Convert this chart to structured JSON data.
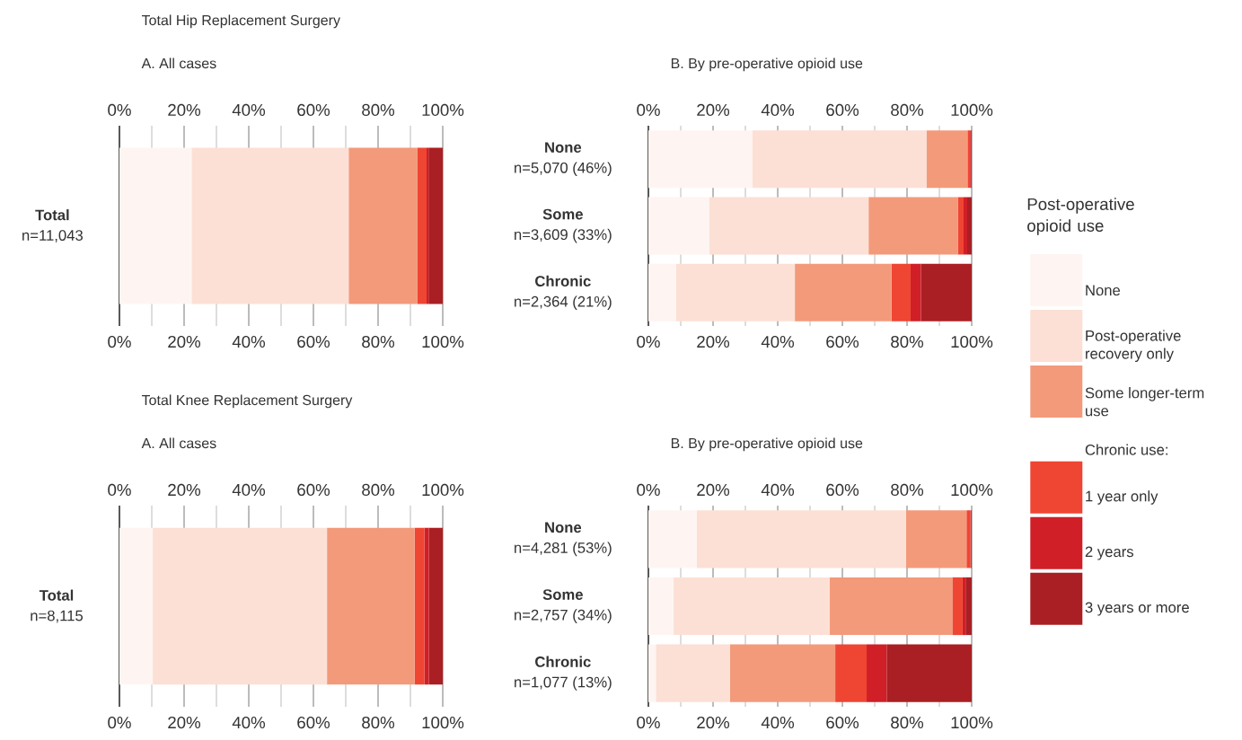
{
  "chart_data": [
    {
      "type": "bar",
      "orientation": "horizontal",
      "stacked": true,
      "title": "Total Hip Replacement Surgery",
      "subtitle": "A. All cases",
      "categories": [
        "**Total**\nn=11,043"
      ],
      "xlim": [
        0,
        100
      ],
      "xticks": [
        {
          "value": 0,
          "label": "0%"
        },
        {
          "value": 20,
          "label": "20%"
        },
        {
          "value": 40,
          "label": "40%"
        },
        {
          "value": 60,
          "label": "60%"
        },
        {
          "value": 80,
          "label": "80%"
        },
        {
          "value": 100,
          "label": "100%"
        }
      ],
      "x2lim": [
        0,
        100
      ],
      "x2ticks": [
        {
          "value": 0,
          "label": "0%"
        },
        {
          "value": 20,
          "label": "20%"
        },
        {
          "value": 40,
          "label": "40%"
        },
        {
          "value": 60,
          "label": "60%"
        },
        {
          "value": 80,
          "label": "80%"
        },
        {
          "value": 100,
          "label": "100%"
        }
      ],
      "grid": "x",
      "series": [
        {
          "color": "#fef5f2",
          "values": [
            22.3
          ]
        },
        {
          "color": "#fce0d5",
          "values": [
            48.6
          ]
        },
        {
          "color": "#f39a7b",
          "values": [
            21.3
          ]
        },
        {
          "color": "#ef4533",
          "values": [
            2.8
          ]
        },
        {
          "color": "#d01f27",
          "values": [
            0.6
          ]
        },
        {
          "color": "#aa1f23",
          "values": [
            4.4
          ]
        }
      ]
    },
    {
      "type": "bar",
      "orientation": "horizontal",
      "stacked": true,
      "subtitle": "B. By pre-operative opioid use",
      "categories": [
        "**None**\nn=5,070 (46%)",
        "**Some**\nn=3,609 (33%)",
        "**Chronic**\nn=2,364 (21%)"
      ],
      "xlim": [
        0,
        100
      ],
      "xticks": [
        {
          "value": 0,
          "label": "0%"
        },
        {
          "value": 20,
          "label": "20%"
        },
        {
          "value": 40,
          "label": "40%"
        },
        {
          "value": 60,
          "label": "60%"
        },
        {
          "value": 80,
          "label": "80%"
        },
        {
          "value": 100,
          "label": "100%"
        }
      ],
      "x2lim": [
        0,
        100
      ],
      "x2ticks": [
        {
          "value": 0,
          "label": "0%"
        },
        {
          "value": 20,
          "label": "20%"
        },
        {
          "value": 40,
          "label": "40%"
        },
        {
          "value": 60,
          "label": "60%"
        },
        {
          "value": 80,
          "label": "80%"
        },
        {
          "value": 100,
          "label": "100%"
        }
      ],
      "grid": "x",
      "legend": "right",
      "legend_title": "Post-operative opioid use",
      "annotations": [
        "Chronic use:"
      ],
      "series": [
        {
          "name": "None",
          "color": "#fef5f2",
          "values": [
            32.1,
            18.8,
            8.6
          ]
        },
        {
          "name": "Post-operative recovery only",
          "color": "#fce0d5",
          "values": [
            53.9,
            49.3,
            36.7
          ]
        },
        {
          "name": "Some longer-term use",
          "color": "#f39a7b",
          "values": [
            12.7,
            27.6,
            29.9
          ]
        },
        {
          "name": "1 year only",
          "color": "#ef4533",
          "values": [
            0.8,
            1.8,
            5.9
          ]
        },
        {
          "name": "2 years",
          "color": "#d01f27",
          "values": [
            0.3,
            1.1,
            3.2
          ]
        },
        {
          "name": "3 years or more",
          "color": "#aa1f23",
          "values": [
            0.2,
            1.4,
            15.7
          ]
        }
      ]
    },
    {
      "type": "bar",
      "orientation": "horizontal",
      "stacked": true,
      "title": "Total Knee Replacement Surgery",
      "subtitle": "A. All cases",
      "categories": [
        "**Total**\nn=8,115"
      ],
      "xlim": [
        0,
        100
      ],
      "xticks": [
        {
          "value": 0,
          "label": "0%"
        },
        {
          "value": 20,
          "label": "20%"
        },
        {
          "value": 40,
          "label": "40%"
        },
        {
          "value": 60,
          "label": "60%"
        },
        {
          "value": 80,
          "label": "80%"
        },
        {
          "value": 100,
          "label": "100%"
        }
      ],
      "x2lim": [
        0,
        100
      ],
      "x2ticks": [
        {
          "value": 0,
          "label": "0%"
        },
        {
          "value": 20,
          "label": "20%"
        },
        {
          "value": 40,
          "label": "40%"
        },
        {
          "value": 60,
          "label": "60%"
        },
        {
          "value": 80,
          "label": "80%"
        },
        {
          "value": 100,
          "label": "100%"
        }
      ],
      "grid": "x",
      "series": [
        {
          "color": "#fef5f2",
          "values": [
            10.3
          ]
        },
        {
          "color": "#fce0d5",
          "values": [
            53.9
          ]
        },
        {
          "color": "#f39a7b",
          "values": [
            27.1
          ]
        },
        {
          "color": "#ef4533",
          "values": [
            3.0
          ]
        },
        {
          "color": "#d01f27",
          "values": [
            1.4
          ]
        },
        {
          "color": "#aa1f23",
          "values": [
            4.3
          ]
        }
      ]
    },
    {
      "type": "bar",
      "orientation": "horizontal",
      "stacked": true,
      "subtitle": "B. By pre-operative opioid use",
      "categories": [
        "**None**\nn=4,281 (53%)",
        "**Some**\nn=2,757 (34%)",
        "**Chronic**\nn=1,077 (13%)"
      ],
      "xlim": [
        0,
        100
      ],
      "xticks": [
        {
          "value": 0,
          "label": "0%"
        },
        {
          "value": 20,
          "label": "20%"
        },
        {
          "value": 40,
          "label": "40%"
        },
        {
          "value": 60,
          "label": "60%"
        },
        {
          "value": 80,
          "label": "80%"
        },
        {
          "value": 100,
          "label": "100%"
        }
      ],
      "x2lim": [
        0,
        100
      ],
      "x2ticks": [
        {
          "value": 0,
          "label": "0%"
        },
        {
          "value": 20,
          "label": "20%"
        },
        {
          "value": 40,
          "label": "40%"
        },
        {
          "value": 60,
          "label": "60%"
        },
        {
          "value": 80,
          "label": "80%"
        },
        {
          "value": 100,
          "label": "100%"
        }
      ],
      "grid": "x",
      "series": [
        {
          "color": "#fef5f2",
          "values": [
            15.0,
            7.8,
            2.3
          ]
        },
        {
          "color": "#fce0d5",
          "values": [
            64.7,
            48.3,
            22.9
          ]
        },
        {
          "color": "#f39a7b",
          "values": [
            18.7,
            37.9,
            32.6
          ]
        },
        {
          "color": "#ef4533",
          "values": [
            1.2,
            3.2,
            9.7
          ]
        },
        {
          "color": "#d01f27",
          "values": [
            0.2,
            0.9,
            6.2
          ]
        },
        {
          "color": "#aa1f23",
          "values": [
            0.2,
            1.9,
            26.3
          ]
        }
      ]
    }
  ]
}
